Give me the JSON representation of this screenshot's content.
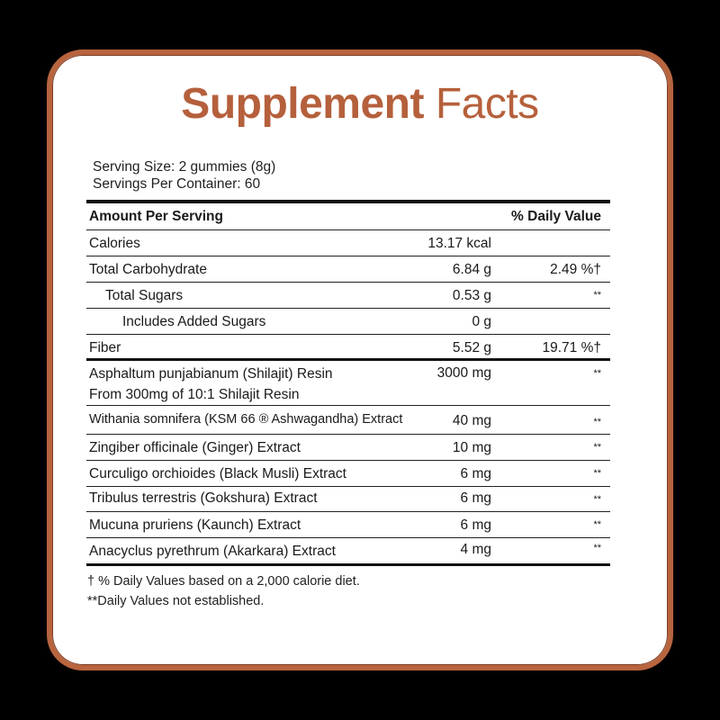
{
  "title": {
    "bold": "Supplement",
    "light": "Facts"
  },
  "serving": {
    "size": "Serving Size: 2 gummies (8g)",
    "per_container": "Servings Per Container: 60"
  },
  "header": {
    "amount": "Amount Per Serving",
    "dv": "% Daily Value"
  },
  "nutrients": [
    {
      "name": "Calories",
      "amount": "13.17 kcal",
      "dv": ""
    },
    {
      "name": "Total Carbohydrate",
      "amount": "6.84 g",
      "dv": "2.49 %†"
    },
    {
      "name": "Total Sugars",
      "amount": "0.53 g",
      "dv": "**"
    },
    {
      "name": "Includes Added Sugars",
      "amount": "0 g",
      "dv": ""
    },
    {
      "name": "Fiber",
      "amount": "5.52 g",
      "dv": "19.71 %†"
    }
  ],
  "ingredients": [
    {
      "name": "Asphaltum punjabianum  (Shilajit) Resin",
      "sub": "From 300mg of 10:1 Shilajit Resin",
      "amount": "3000 mg",
      "dv": "**"
    },
    {
      "name": "Withania somnifera (KSM 66 ® Ashwagandha) Extract",
      "amount": "40 mg",
      "dv": "**"
    },
    {
      "name": "Zingiber officinale (Ginger) Extract",
      "amount": "10 mg",
      "dv": "**"
    },
    {
      "name": "Curculigo orchioides (Black Musli) Extract",
      "amount": "6 mg",
      "dv": "**"
    },
    {
      "name": "Tribulus terrestris (Gokshura) Extract",
      "amount": "6 mg",
      "dv": "**"
    },
    {
      "name": "Mucuna pruriens (Kaunch) Extract",
      "amount": "6 mg",
      "dv": "**"
    },
    {
      "name": "Anacyclus pyrethrum (Akarkara) Extract",
      "amount": "4 mg",
      "dv": "**"
    }
  ],
  "footnotes": [
    "† % Daily Values based on a 2,000 calorie diet.",
    "**Daily Values not established."
  ],
  "colors": {
    "accent": "#b5603c",
    "background": "#000000",
    "card": "#ffffff"
  }
}
